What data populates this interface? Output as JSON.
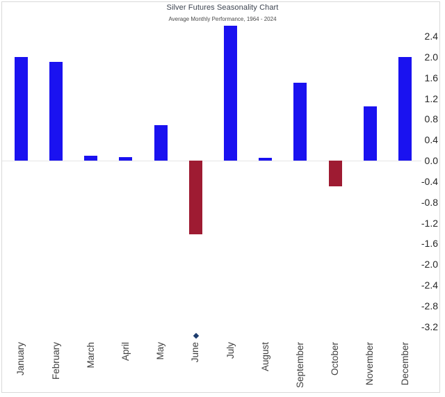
{
  "chart_data": {
    "type": "bar",
    "title": "Silver Futures Seasonality Chart",
    "subtitle": "Average Monthly Performance, 1964 - 2024",
    "categories": [
      "January",
      "February",
      "March",
      "April",
      "May",
      "June",
      "July",
      "August",
      "September",
      "October",
      "November",
      "December"
    ],
    "values": [
      2.0,
      1.9,
      0.1,
      0.07,
      0.68,
      -1.42,
      2.6,
      0.05,
      1.5,
      -0.5,
      1.05,
      2.0
    ],
    "y_tick_labels": [
      "2.4",
      "2.0",
      "1.6",
      "1.2",
      "0.8",
      "0.4",
      "0.0",
      "-0.4",
      "-0.8",
      "-1.2",
      "-1.6",
      "-2.0",
      "-2.4",
      "-2.8",
      "-3.2"
    ],
    "ylim": [
      -3.2,
      2.4
    ],
    "xlabel": "",
    "ylabel": "",
    "legend": "none",
    "grid": "zero line only",
    "colors": {
      "positive": "#1a12f0",
      "negative": "#9e1b32",
      "marker": "#1c3c6e",
      "frame_border": "#d9d9d9",
      "zero_line": "#e6e6e6"
    },
    "marker": {
      "month": "June",
      "shape": "diamond"
    }
  }
}
